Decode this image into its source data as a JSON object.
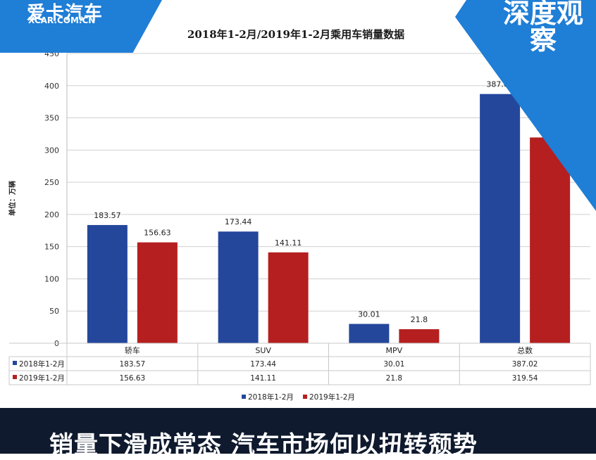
{
  "brand": {
    "logo_main": "爱卡汽车",
    "logo_sub": "XCAR.COM.CN",
    "corner_badge": "深度观察"
  },
  "headline": "销量下滑成常态 汽车市场何以扭转颓势",
  "colors": {
    "series_2018": "#24479c",
    "series_2019": "#b51f1f",
    "brand_blue": "#1f7ed6",
    "bottom_bar": "#0f1a2e"
  },
  "chart_data": {
    "type": "bar",
    "title": "2018年1-2月/2019年1-2月乘用车销量数据",
    "ylabel": "单位：万辆",
    "xlabel": "",
    "ylim": [
      0,
      450
    ],
    "yticks": [
      0,
      50,
      100,
      150,
      200,
      250,
      300,
      350,
      400,
      450
    ],
    "grid": true,
    "legend_position": "bottom",
    "categories": [
      "轿车",
      "SUV",
      "MPV",
      "总数"
    ],
    "series": [
      {
        "name": "2018年1-2月",
        "values": [
          183.57,
          173.44,
          30.01,
          387.02
        ],
        "labels": [
          "183.57",
          "173.44",
          "30.01",
          "387.02"
        ]
      },
      {
        "name": "2019年1-2月",
        "values": [
          156.63,
          141.11,
          21.8,
          319.54
        ],
        "labels": [
          "156.63",
          "141.11",
          "21.8",
          "319.54"
        ]
      }
    ]
  }
}
